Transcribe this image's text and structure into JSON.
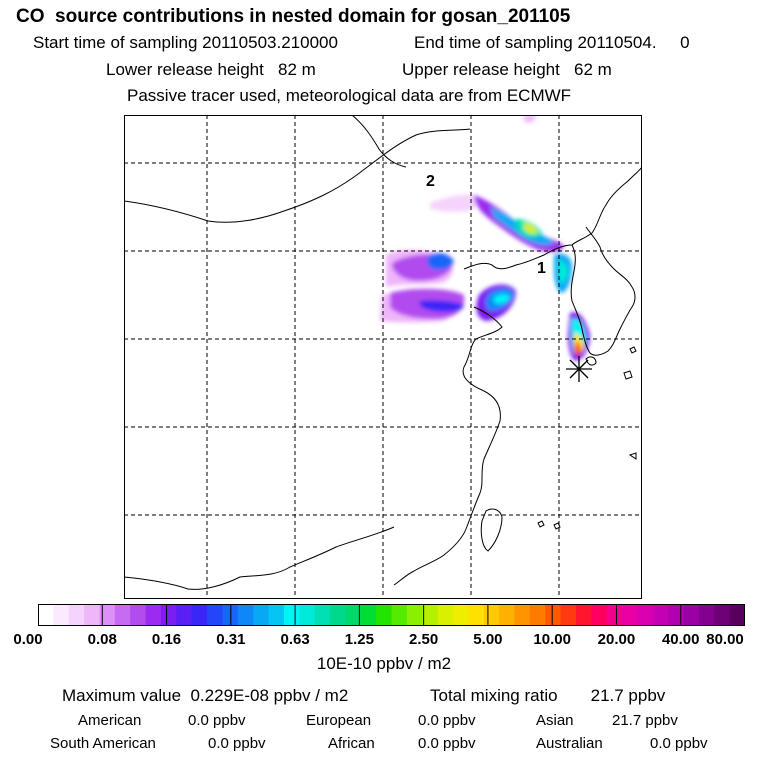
{
  "header": {
    "title": "CO  source contributions in nested domain for gosan_201105",
    "start_label": "Start time of sampling 20110503.210000",
    "end_label": "End time of sampling 20110504.     0",
    "lower_release": "Lower release height   82 m",
    "upper_release": "Upper release height   62 m",
    "tracer_note": "Passive tracer used, meteorological data are from ECMWF"
  },
  "map": {
    "labels": {
      "point1": "1",
      "point2": "2"
    },
    "site_marker": "asterisk-icon"
  },
  "colorbar": {
    "unit": "10E-10 ppbv / m2",
    "ticks": [
      "0.00",
      "0.08",
      "0.16",
      "0.31",
      "0.63",
      "1.25",
      "2.50",
      "5.00",
      "10.00",
      "20.00",
      "40.00",
      "80.00"
    ],
    "colors": [
      "#ffffff",
      "#fbeafe",
      "#f6d3fc",
      "#efb6fa",
      "#dd90f6",
      "#c76cf2",
      "#b24cef",
      "#9b2bf0",
      "#7a1ff2",
      "#5a1ff5",
      "#3a26f7",
      "#2346f8",
      "#1866f8",
      "#0e88f7",
      "#08a8f5",
      "#05c6f2",
      "#00f4f4",
      "#00eadb",
      "#00e0b4",
      "#00d98c",
      "#00d96a",
      "#00dd33",
      "#22e400",
      "#55ea00",
      "#8aef00",
      "#b4f000",
      "#d9f000",
      "#f0ee00",
      "#ffe000",
      "#ffca00",
      "#ffb000",
      "#ff9400",
      "#ff7a00",
      "#ff5a00",
      "#ff3a10",
      "#ff1530",
      "#ff0060",
      "#f5008a",
      "#e800a4",
      "#d800b0",
      "#c400b4",
      "#b000b0",
      "#9a00a4",
      "#84008e",
      "#6e0078",
      "#58005e"
    ]
  },
  "stats": {
    "maximum": "Maximum value  0.229E-08 ppbv / m2",
    "total": "Total mixing ratio       21.7 ppbv",
    "regions": [
      {
        "name": "American",
        "value": "0.0 ppbv"
      },
      {
        "name": "European",
        "value": "0.0 ppbv"
      },
      {
        "name": "Asian",
        "value": "21.7 ppbv"
      },
      {
        "name": "South American",
        "value": "0.0 ppbv"
      },
      {
        "name": "African",
        "value": "0.0 ppbv"
      },
      {
        "name": "Australian",
        "value": "0.0 ppbv"
      }
    ]
  }
}
